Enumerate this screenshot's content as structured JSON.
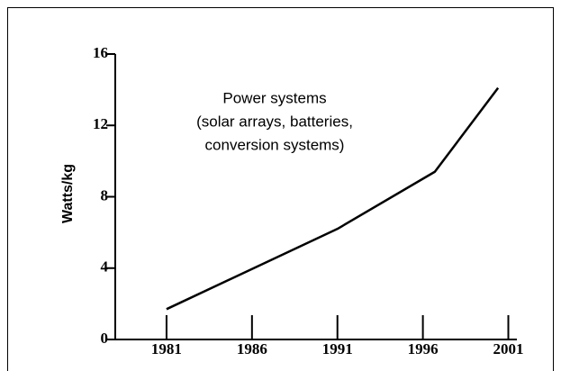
{
  "chart_data": {
    "type": "line",
    "y_label": "Watts/kg",
    "annotation": [
      "Power systems",
      "(solar arrays, batteries,",
      "conversion systems)"
    ],
    "x": [
      1981,
      1991,
      1996.7,
      2000.4
    ],
    "series": [
      {
        "color": "#000000",
        "values": [
          1.7,
          6.2,
          9.4,
          14.1
        ]
      }
    ],
    "xlim": [
      1978,
      2001.5
    ],
    "xticks": [
      1981,
      1986,
      1991,
      1996,
      2001
    ],
    "ylim": [
      0,
      16
    ],
    "yticks": [
      0,
      4,
      8,
      12,
      16
    ]
  }
}
